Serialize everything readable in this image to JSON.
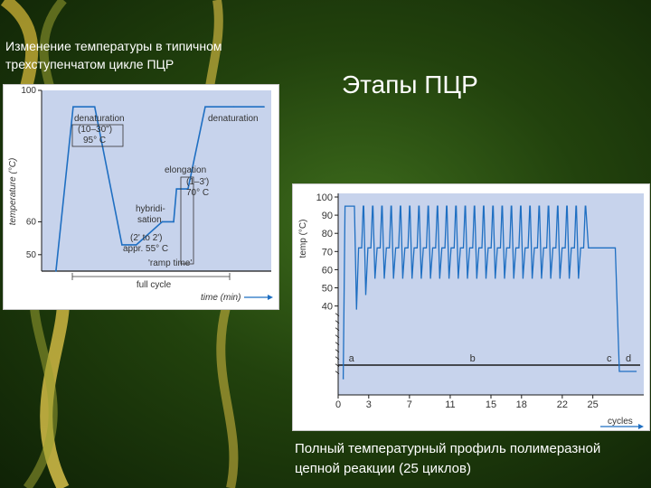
{
  "slide": {
    "title": "Этапы ПЦР",
    "caption_top": "Изменение температуры в типичном трехступенчатом цикле ПЦР",
    "caption_bottom": "Полный температурный профиль полимеразной цепной реакции (25 циклов)"
  },
  "colors": {
    "background": "#2e5a14",
    "plot_bg": "#c7d3ec",
    "line": "#1f6fc2",
    "axis": "#1a1a1a",
    "text": "#ffffff"
  },
  "chart_data": [
    {
      "type": "line",
      "title": "",
      "xlabel": "time (min)",
      "ylabel": "temperature (°C)",
      "yticks": [
        50,
        60,
        100
      ],
      "ylim": [
        45,
        100
      ],
      "xlim": [
        0,
        16
      ],
      "grid": false,
      "series": [
        {
          "x": [
            1.0,
            2.2,
            3.7,
            5.6,
            6.6,
            8.4,
            9.2,
            9.4,
            10.2,
            11.4,
            13.4,
            15.5
          ],
          "y": [
            45,
            95,
            95,
            53,
            53,
            60,
            60,
            70,
            70,
            95,
            95,
            95
          ]
        }
      ],
      "annotations": [
        {
          "label": "denaturation"
        },
        {
          "label": "(10–30\")"
        },
        {
          "label": "95° C"
        },
        {
          "label": "denaturation"
        },
        {
          "label": "elongation"
        },
        {
          "label": "(1–3')"
        },
        {
          "label": "70° C"
        },
        {
          "label": "hybridi-"
        },
        {
          "label": "sation"
        },
        {
          "label": "(2' to 2')"
        },
        {
          "label": "appr. 55° C"
        },
        {
          "label": "'ramp time'"
        },
        {
          "label": "full cycle"
        }
      ]
    },
    {
      "type": "line",
      "title": "",
      "xlabel": "cycles",
      "ylabel": "temp (°C)",
      "yticks": [
        40,
        50,
        60,
        70,
        80,
        90,
        100
      ],
      "xticks": [
        0,
        3,
        7,
        11,
        15,
        18,
        22,
        25
      ],
      "ylim": [
        0,
        100
      ],
      "xlim": [
        0,
        30
      ],
      "grid": false,
      "profile": {
        "initial_temp": 0,
        "initial_denaturation": 95,
        "denaturation": 95,
        "annealing": 55,
        "extension": 72,
        "final_extension": 72,
        "end_temp": 4,
        "cycles": 25,
        "first_annealing_dips": [
          38,
          46
        ]
      },
      "phase_labels": [
        "a",
        "b",
        "c",
        "d"
      ]
    }
  ]
}
